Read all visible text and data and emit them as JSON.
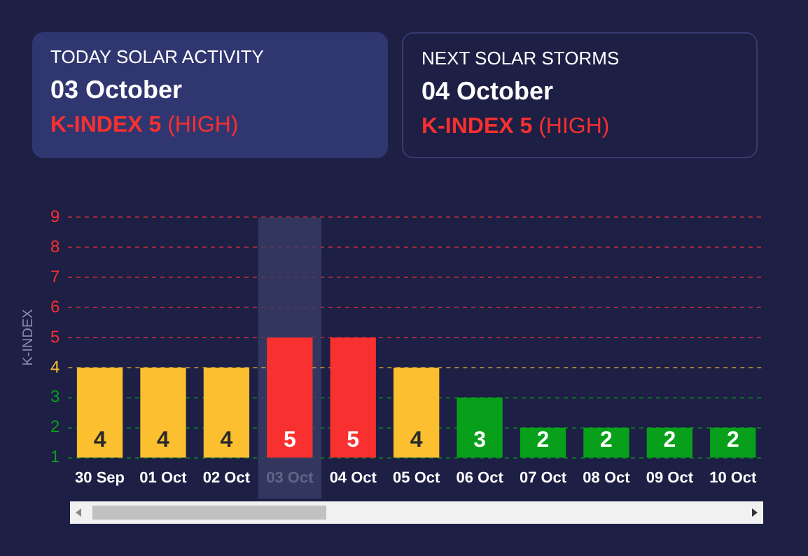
{
  "chart_data": {
    "type": "bar",
    "ylabel": "K-INDEX",
    "annotations": [
      "TODAY SOLAR ACTIVITY",
      "03 October",
      "K-INDEX 5",
      "(HIGH)",
      "NEXT SOLAR STORMS",
      "04 October",
      "K-INDEX 5",
      "(HIGH)"
    ],
    "categories": [
      "30 Sep",
      "01 Oct",
      "02 Oct",
      "03 Oct",
      "04 Oct",
      "05 Oct",
      "06 Oct",
      "07 Oct",
      "08 Oct",
      "09 Oct",
      "10 Oct"
    ],
    "values": [
      4,
      4,
      4,
      5,
      5,
      4,
      3,
      2,
      2,
      2,
      2
    ],
    "colors": [
      "#fbbf2f",
      "#fbbf2f",
      "#fbbf2f",
      "#f8302f",
      "#f8302f",
      "#fbbf2f",
      "#08a01a",
      "#08a01a",
      "#08a01a",
      "#08a01a",
      "#08a01a"
    ],
    "ylim": [
      1,
      9
    ],
    "yticks": [
      1,
      2,
      3,
      4,
      5,
      6,
      7,
      8,
      9
    ],
    "bands": [
      {
        "axis": "x",
        "from": "03 Oct",
        "to": "03 Oct",
        "color": "#3a3d66"
      }
    ],
    "ref_lines": [
      {
        "axis": "y",
        "value": 4,
        "color": "#fbbf2f",
        "line_style": "dashed"
      }
    ],
    "grid": "y",
    "legend": false,
    "data_labels": true
  }
}
